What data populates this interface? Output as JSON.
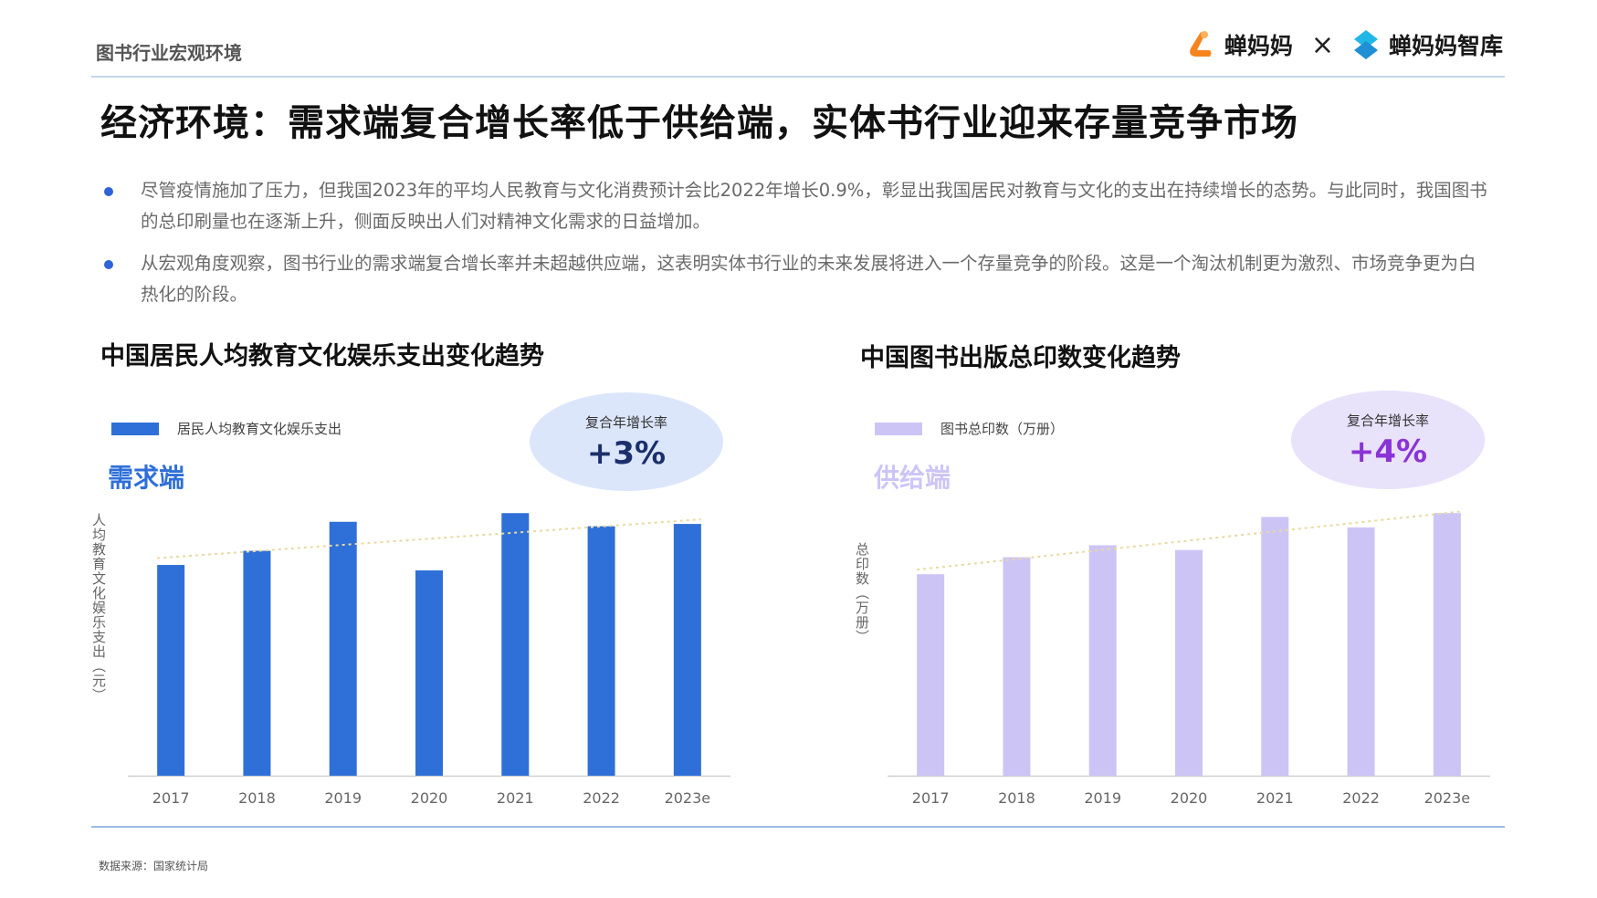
{
  "header": {
    "section_label": "图书行业宏观环境",
    "brand_left": "蝉妈妈",
    "brand_sep": "×",
    "brand_right": "蝉妈妈智库",
    "accent_orange": "#f5841f",
    "accent_blue": "#1f8fd6"
  },
  "headline": "经济环境：需求端复合增长率低于供给端，实体书行业迎来存量竞争市场",
  "bullets": [
    "尽管疫情施加了压力，但我国2023年的平均人民教育与文化消费预计会比2022年增长0.9%，彰显出我国居民对教育与文化的支出在持续增长的态势。与此同时，我国图书的总印刷量也在逐渐上升，侧面反映出人们对精神文化需求的日益增加。",
    "从宏观角度观察，图书行业的需求端复合增长率并未超越供应端，这表明实体书行业的未来发展将进入一个存量竞争的阶段。这是一个淘汰机制更为激烈、市场竞争更为白热化的阶段。"
  ],
  "charts": {
    "left": {
      "title": "中国居民人均教育文化娱乐支出变化趋势",
      "legend": "居民人均教育文化娱乐支出",
      "side_label": "需求端",
      "ylabel": "人均教育文化娱乐支出（元）",
      "cagr_label": "复合年增长率",
      "cagr_value": "+3%",
      "bar_color": "#2f6fd8",
      "side_color": "#2f6fd8",
      "bubble_color": "#dbe6fb",
      "value_color": "#1b2f6b"
    },
    "right": {
      "title": "中国图书出版总印数变化趋势",
      "legend": "图书总印数（万册）",
      "side_label": "供给端",
      "ylabel": "总印数（万册）",
      "cagr_label": "复合年增长率",
      "cagr_value": "+4%",
      "bar_color": "#cdc4f6",
      "side_color": "#cdc4f6",
      "bubble_color": "#e9e2fb",
      "value_color": "#8a33d6"
    }
  },
  "chart_data": [
    {
      "type": "bar",
      "title": "中国居民人均教育文化娱乐支出变化趋势",
      "categories": [
        "2017",
        "2018",
        "2019",
        "2020",
        "2021",
        "2022",
        "2023e"
      ],
      "series": [
        {
          "name": "居民人均教育文化娱乐支出",
          "values": [
            2086,
            2226,
            2513,
            2032,
            2599,
            2469,
            2492
          ]
        }
      ],
      "ylabel": "人均教育文化娱乐支出（元）",
      "ylim": [
        0,
        2800
      ],
      "trendline": true,
      "grid": false,
      "legend": "top-left"
    },
    {
      "type": "bar",
      "title": "中国图书出版总印数变化趋势",
      "categories": [
        "2017",
        "2018",
        "2019",
        "2020",
        "2021",
        "2022",
        "2023e"
      ],
      "series": [
        {
          "name": "图书总印数（万册）",
          "values": [
            926000,
            1004000,
            1059000,
            1037000,
            1189000,
            1141000,
            1207000
          ]
        }
      ],
      "ylabel": "总印数（万册）",
      "ylim": [
        0,
        1300000
      ],
      "trendline": true,
      "grid": false,
      "legend": "top-left"
    }
  ],
  "source": "数据来源：国家统计局"
}
